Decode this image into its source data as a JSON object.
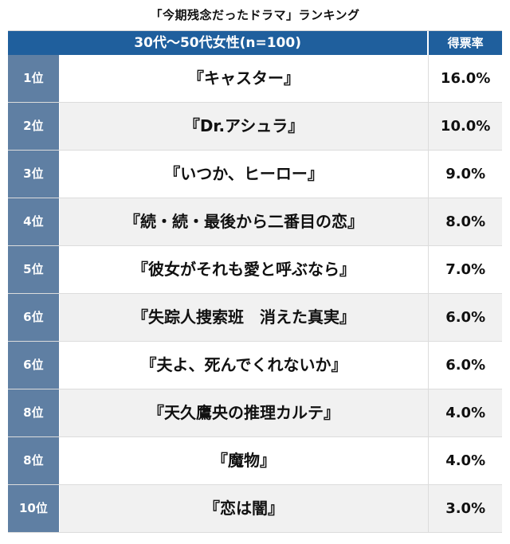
{
  "title": "「今期残念だったドラマ」ランキング",
  "header": {
    "group_label": "30代〜50代女性(n=100)",
    "rate_label": "得票率"
  },
  "rows": [
    {
      "rank": "1位",
      "title": "『キャスター』",
      "rate": "16.0%"
    },
    {
      "rank": "2位",
      "title": "『Dr.アシュラ』",
      "rate": "10.0%"
    },
    {
      "rank": "3位",
      "title": "『いつか、ヒーロー』",
      "rate": "9.0%"
    },
    {
      "rank": "4位",
      "title": "『続・続・最後から二番目の恋』",
      "rate": "8.0%"
    },
    {
      "rank": "5位",
      "title": "『彼女がそれも愛と呼ぶなら』",
      "rate": "7.0%"
    },
    {
      "rank": "6位",
      "title": "『失踪人捜索班　消えた真実』",
      "rate": "6.0%"
    },
    {
      "rank": "6位",
      "title": "『夫よ、死んでくれないか』",
      "rate": "6.0%"
    },
    {
      "rank": "8位",
      "title": "『天久鷹央の推理カルテ』",
      "rate": "4.0%"
    },
    {
      "rank": "8位",
      "title": "『魔物』",
      "rate": "4.0%"
    },
    {
      "rank": "10位",
      "title": "『恋は闇』",
      "rate": "3.0%"
    }
  ],
  "colors": {
    "header_bg": "#1f5f9d",
    "rank_bg": "#5f7fa3",
    "alt_row_bg": "#f1f1f1"
  }
}
